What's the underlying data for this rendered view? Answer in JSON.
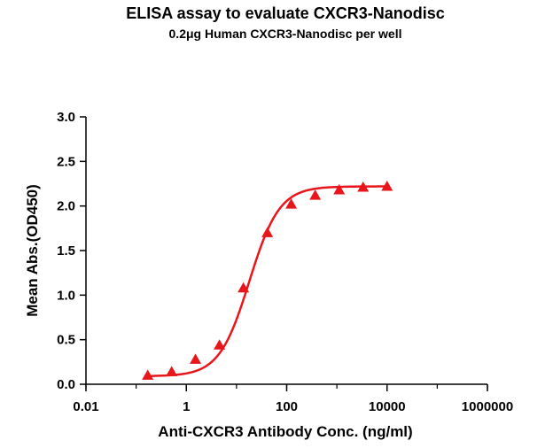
{
  "chart_data": {
    "type": "scatter",
    "title": "ELISA assay to evaluate CXCR3-Nanodisc",
    "subtitle": "0.2μg Human CXCR3-Nanodisc per well",
    "xlabel": "Anti-CXCR3 Antibody Conc. (ng/ml)",
    "ylabel": "Mean Abs.(OD450)",
    "x_scale": "log",
    "xlim": [
      0.01,
      1000000
    ],
    "ylim": [
      0,
      3.0
    ],
    "x_ticks": [
      0.01,
      1,
      100,
      10000,
      1000000
    ],
    "x_tick_labels": [
      "0.01",
      "1",
      "100",
      "10000",
      "1000000"
    ],
    "y_ticks": [
      0,
      0.5,
      1.0,
      1.5,
      2.0,
      2.5,
      3.0
    ],
    "y_tick_labels": [
      "0.0",
      "0.5",
      "1.0",
      "1.5",
      "2.0",
      "2.5",
      "3.0"
    ],
    "grid": false,
    "series": [
      {
        "marker": "triangle",
        "color": "#e8161b",
        "fit": "4PL sigmoid curve",
        "x": [
          0.17,
          0.51,
          1.52,
          4.57,
          13.7,
          41.2,
          123,
          370,
          1111,
          3333,
          10000
        ],
        "y": [
          0.1,
          0.14,
          0.28,
          0.44,
          1.08,
          1.7,
          2.02,
          2.12,
          2.18,
          2.21,
          2.22
        ]
      }
    ]
  }
}
